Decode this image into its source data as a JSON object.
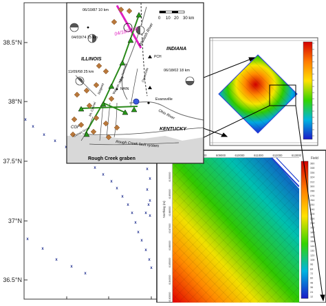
{
  "lat_labels": [
    "38.5°N",
    "38°N",
    "37.5°N",
    "37°N",
    "36.5°N"
  ],
  "inset": {
    "states": [
      "ILLINOIS",
      "INDIANA",
      "KENTUCKY"
    ],
    "rivers": [
      "Wabash River",
      "Ohio River"
    ],
    "events": [
      {
        "label": "06/10/87 10 km"
      },
      {
        "label": "04/03/74 15 km"
      },
      {
        "label": "11/09/68 25 km"
      },
      {
        "label": "06/18/02 18 km"
      },
      {
        "label": "04/18/2008"
      }
    ],
    "cities": [
      "PCH",
      "Evansville",
      "NHIN"
    ],
    "structures": [
      "Rough Creek graben",
      "Rough Creek fault system",
      "CGF",
      "Wabash Valley",
      "Mt. Carmel",
      "Ridgway",
      "New Harmony",
      "Owensville",
      "Cottage Grove"
    ],
    "scale": {
      "ticks": [
        "0",
        "10",
        "20",
        "30 km"
      ]
    }
  },
  "panels": {
    "top_right": {
      "desc": "velocity slice"
    },
    "bottom_right": {
      "x_ticks": [
        "607000",
        "608000",
        "609000",
        "610000",
        "611000",
        "612000",
        "613000"
      ],
      "y_label": "Northing (m)",
      "y_ticks": [
        "4190000",
        "4189000",
        "4188000",
        "4187000",
        "4186000",
        "4185000",
        "4184000",
        "4183000"
      ],
      "colorbar_title": "Field",
      "colorbar_ticks": [
        "360",
        "348",
        "336",
        "324",
        "312",
        "300",
        "288",
        "276",
        "264",
        "252",
        "240",
        "228",
        "216",
        "204",
        "192",
        "180",
        "168",
        "156",
        "144",
        "132",
        "120",
        "108",
        "96",
        "84",
        "72",
        "60",
        "48",
        "36",
        "24",
        "12"
      ]
    }
  },
  "colors": {
    "frame": "#333333",
    "stations": "#1a2a8c",
    "fault_green": "#2a8a1a",
    "wabash_magenta": "#e020c0"
  }
}
